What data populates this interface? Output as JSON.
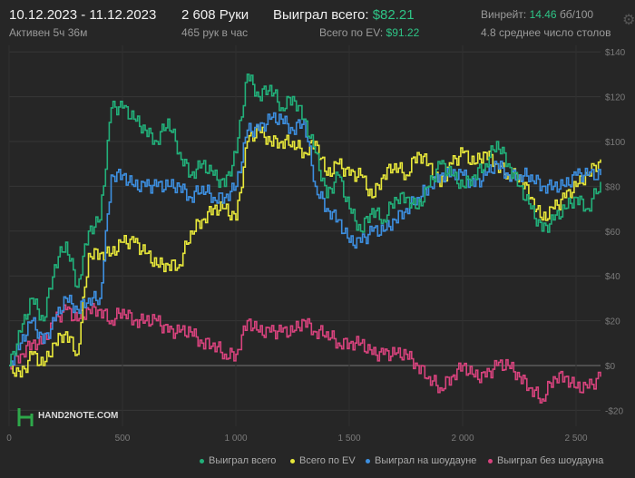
{
  "header": {
    "date_range": "10.12.2023 - 11.12.2023",
    "active": "Активен 5ч 36м",
    "hands": "2 608 Руки",
    "hands_per_hour": "465 рук в час",
    "won_label": "Выиграл всего:",
    "won_value": "$82.21",
    "ev_label": "Всего по EV:",
    "ev_value": "$91.22",
    "winrate_label": "Винрейт:",
    "winrate_value": "14.46",
    "winrate_unit": "бб/100",
    "tables": "4.8 среднее число столов"
  },
  "logo": "HAND2NOTE.COM",
  "colors": {
    "green": "#22b07a",
    "yellow": "#e8e83a",
    "blue": "#3d8fe0",
    "pink": "#d9437e"
  },
  "chart_data": {
    "type": "line",
    "xlim": [
      0,
      2608
    ],
    "ylim": [
      -20,
      140
    ],
    "x_ticks": [
      0,
      500,
      1000,
      1500,
      2000,
      2500
    ],
    "x_tick_labels": [
      "0",
      "500",
      "1 000",
      "1 500",
      "2 000",
      "2 500"
    ],
    "y_ticks": [
      140,
      120,
      100,
      80,
      60,
      40,
      20,
      0,
      -20
    ],
    "y_tick_labels": [
      "$140",
      "$120",
      "$100",
      "$80",
      "$60",
      "$40",
      "$20",
      "$0",
      "-$20"
    ],
    "x": [
      0,
      50,
      100,
      150,
      200,
      250,
      300,
      350,
      400,
      450,
      500,
      550,
      600,
      650,
      700,
      750,
      800,
      850,
      900,
      950,
      1000,
      1050,
      1100,
      1150,
      1200,
      1250,
      1300,
      1350,
      1400,
      1450,
      1500,
      1550,
      1600,
      1650,
      1700,
      1750,
      1800,
      1850,
      1900,
      1950,
      2000,
      2050,
      2100,
      2150,
      2200,
      2250,
      2300,
      2350,
      2400,
      2450,
      2500,
      2550,
      2608
    ],
    "series": [
      {
        "name": "Выиграл всего",
        "color": "#22b07a",
        "values": [
          0,
          15,
          30,
          20,
          45,
          55,
          35,
          60,
          65,
          115,
          115,
          110,
          105,
          100,
          110,
          95,
          85,
          90,
          85,
          80,
          95,
          130,
          120,
          125,
          115,
          120,
          110,
          95,
          75,
          85,
          70,
          60,
          70,
          65,
          75,
          75,
          70,
          80,
          90,
          85,
          80,
          85,
          90,
          100,
          90,
          80,
          70,
          60,
          65,
          70,
          75,
          70,
          82
        ]
      },
      {
        "name": "Всего по EV",
        "color": "#e8e83a",
        "values": [
          0,
          -5,
          5,
          0,
          10,
          15,
          5,
          50,
          50,
          50,
          55,
          55,
          50,
          45,
          45,
          45,
          60,
          65,
          70,
          70,
          65,
          100,
          105,
          100,
          100,
          100,
          95,
          100,
          85,
          90,
          85,
          85,
          75,
          85,
          90,
          85,
          95,
          90,
          80,
          90,
          95,
          90,
          95,
          90,
          85,
          85,
          75,
          65,
          70,
          75,
          80,
          85,
          92
        ]
      },
      {
        "name": "Выиграл на шоудауне",
        "color": "#3d8fe0",
        "values": [
          0,
          10,
          20,
          10,
          20,
          30,
          25,
          30,
          30,
          85,
          85,
          80,
          80,
          80,
          80,
          80,
          75,
          80,
          75,
          75,
          80,
          105,
          105,
          110,
          110,
          105,
          110,
          80,
          70,
          65,
          55,
          55,
          60,
          60,
          65,
          70,
          75,
          80,
          85,
          85,
          85,
          80,
          85,
          90,
          85,
          85,
          85,
          80,
          80,
          80,
          85,
          85,
          85
        ]
      },
      {
        "name": "Выиграл без шоудауна",
        "color": "#d9437e",
        "values": [
          0,
          5,
          10,
          10,
          20,
          25,
          20,
          25,
          25,
          20,
          25,
          20,
          20,
          20,
          15,
          15,
          15,
          10,
          10,
          5,
          5,
          20,
          15,
          15,
          15,
          15,
          20,
          15,
          15,
          10,
          10,
          10,
          5,
          5,
          5,
          5,
          0,
          -5,
          -10,
          -5,
          0,
          -5,
          -5,
          0,
          0,
          -5,
          -10,
          -15,
          -5,
          -5,
          -10,
          -10,
          -5
        ]
      }
    ]
  }
}
